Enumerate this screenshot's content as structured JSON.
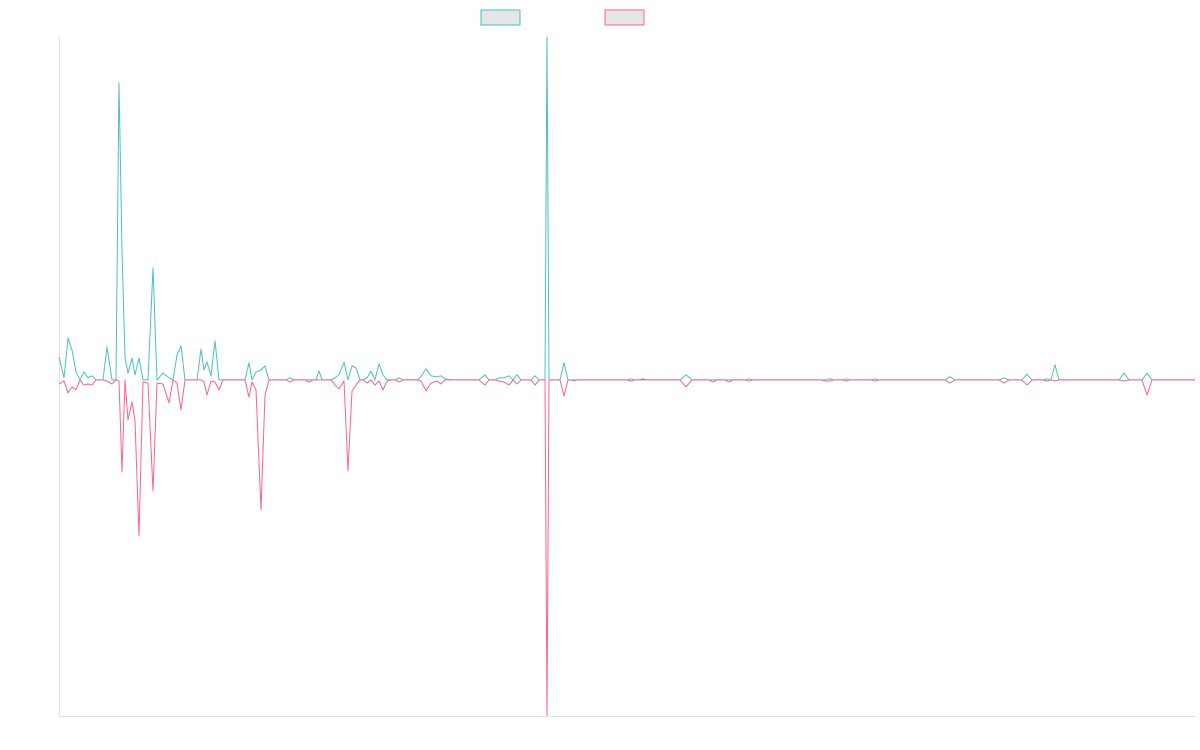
{
  "chart_data": {
    "type": "line",
    "x": [
      0,
      5,
      9,
      13,
      17,
      21,
      25,
      29,
      33,
      37,
      44,
      48,
      53,
      57,
      60,
      63,
      66,
      69,
      73,
      76,
      80,
      84,
      89,
      94,
      98,
      104,
      110,
      114,
      118,
      122,
      126,
      138,
      142,
      145,
      148,
      152,
      156,
      160,
      164,
      186,
      190,
      193,
      197,
      202,
      206,
      210,
      227,
      231,
      235,
      246,
      250,
      254,
      257,
      260,
      263,
      272,
      276,
      280,
      285,
      289,
      293,
      297,
      301,
      304,
      308,
      312,
      316,
      320,
      324,
      328,
      333,
      336,
      340,
      344,
      358,
      362,
      367,
      372,
      378,
      382,
      386,
      392,
      420,
      426,
      430,
      436,
      440,
      445,
      450,
      454,
      458,
      462,
      472,
      476,
      480,
      486,
      488,
      490,
      501,
      505,
      509,
      512,
      515,
      518,
      568,
      572,
      576,
      580,
      584,
      588,
      621,
      627,
      633,
      650,
      654,
      658,
      666,
      670,
      674,
      686,
      690,
      694,
      762,
      766,
      771,
      775,
      783,
      787,
      791,
      812,
      816,
      820,
      886,
      891,
      896,
      940,
      945,
      950,
      963,
      968,
      973,
      984,
      988,
      992,
      996,
      1000,
      1060,
      1065,
      1070,
      1083,
      1088,
      1093,
      1136
    ],
    "series": [
      {
        "color": "#4bc0c0",
        "values": [
          6.7,
          0.6,
          12.2,
          8.7,
          2.3,
          0,
          2.3,
          0.6,
          1.2,
          0,
          0,
          9.6,
          0,
          0,
          86.6,
          37.9,
          6.4,
          2,
          6.4,
          1.5,
          6.4,
          0,
          0,
          32.7,
          0,
          2,
          0.6,
          0,
          7.3,
          9.9,
          0,
          0,
          9,
          2.9,
          5.2,
          1.2,
          11.4,
          0,
          0,
          0,
          5,
          0,
          2.3,
          2.9,
          4.1,
          0,
          0,
          0.6,
          0,
          0,
          0,
          0,
          0,
          2.6,
          0,
          0,
          0.6,
          1.5,
          5.2,
          0,
          4.1,
          3.5,
          0,
          0,
          0.6,
          2.6,
          0,
          4.7,
          1.5,
          0,
          0,
          0,
          0.6,
          0,
          0,
          0.9,
          3.2,
          1.2,
          0.9,
          1.2,
          0.3,
          0,
          0,
          1.5,
          0,
          0,
          0.6,
          0.6,
          1.2,
          0,
          1.5,
          0,
          0,
          1.2,
          0,
          0,
          100,
          0,
          0,
          5,
          0,
          0,
          0,
          0,
          0,
          0.3,
          0,
          0,
          0.3,
          0,
          0,
          1.5,
          0,
          0,
          0,
          0,
          0,
          0,
          0,
          0,
          0.3,
          0,
          0,
          0,
          0.3,
          0,
          0,
          0.3,
          0,
          0,
          0.3,
          0,
          0,
          0.9,
          0,
          0,
          0.6,
          0,
          0,
          1.7,
          0,
          0,
          0.3,
          0,
          4.4,
          0,
          0,
          2,
          0,
          0,
          2,
          0,
          0
        ]
      },
      {
        "color": "#ff6384",
        "values": [
          -1.2,
          -0.3,
          -3.8,
          -2,
          -2.9,
          0,
          -1.5,
          -1.2,
          -1.5,
          0,
          0,
          -0.3,
          -1.2,
          0,
          -0.3,
          -26.8,
          0,
          -11.7,
          -6.4,
          -11.7,
          -45.5,
          -0.6,
          -0.9,
          -32.4,
          -0.9,
          -1.2,
          -6.7,
          0,
          -0.9,
          -8.7,
          0,
          0,
          0,
          -0.6,
          -4.4,
          -0.3,
          -0.6,
          -2.9,
          0,
          0,
          -5,
          -0.6,
          -2.9,
          -37.9,
          -4.4,
          0,
          0,
          -0.6,
          0,
          0,
          -0.6,
          0,
          0,
          0,
          0,
          0,
          -1.5,
          -2.6,
          -0.3,
          -26.5,
          -3.2,
          -1.5,
          0,
          0,
          -0.9,
          0,
          -1.5,
          -0.3,
          -2.9,
          -0.3,
          0,
          0,
          -0.6,
          0,
          0,
          -0.3,
          -3.2,
          -0.9,
          -0.3,
          -1.2,
          0,
          0,
          0,
          -1.5,
          0,
          0,
          -0.3,
          -0.6,
          -1.5,
          0,
          -1.2,
          0,
          0,
          -1.5,
          0,
          0,
          -98,
          0,
          0,
          -4.7,
          0,
          0,
          -0.3,
          0,
          0,
          -0.3,
          0,
          0,
          0,
          0,
          0,
          -2,
          0,
          0,
          -0.6,
          0,
          0,
          -0.6,
          0,
          0,
          -0.3,
          0,
          0,
          -0.3,
          -0.3,
          0,
          0,
          -0.3,
          0,
          0,
          -0.3,
          0,
          0,
          -0.9,
          0,
          0,
          -0.9,
          0,
          0,
          -1.5,
          0,
          0,
          -0.3,
          0,
          -0.3,
          0,
          0,
          -0.3,
          0,
          0,
          -4.4,
          0,
          0
        ]
      }
    ],
    "xlim": [
      0,
      1136
    ],
    "ylim": [
      -98,
      100
    ]
  }
}
